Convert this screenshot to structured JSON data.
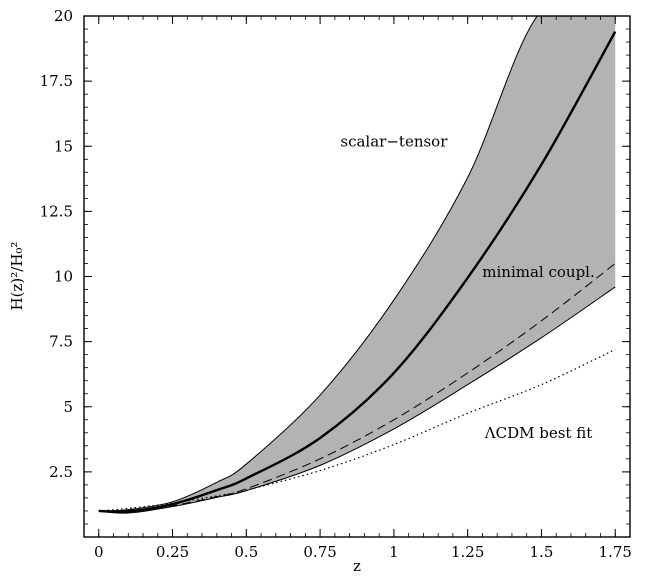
{
  "chart_data": {
    "type": "line",
    "title": "",
    "xlabel": "z",
    "ylabel": "H(z)²/H₀²",
    "xlim": [
      -0.05,
      1.8
    ],
    "ylim": [
      0,
      20
    ],
    "grid": false,
    "x_ticks": [
      0,
      0.25,
      0.5,
      0.75,
      1,
      1.25,
      1.5,
      1.75
    ],
    "x_tick_labels": [
      "0",
      "0.25",
      "0.5",
      "0.75",
      "1",
      "1.25",
      "1.5",
      "1.75"
    ],
    "y_ticks": [
      2.5,
      5,
      7.5,
      10,
      12.5,
      15,
      17.5,
      20
    ],
    "y_tick_labels": [
      "2.5",
      "5",
      "7.5",
      "10",
      "12.5",
      "15",
      "17.5",
      "20"
    ],
    "band": {
      "fill_color": "#b3b3b3",
      "x": [
        0,
        0.1,
        0.25,
        0.4,
        0.5,
        0.75,
        1.0,
        1.25,
        1.5,
        1.75
      ],
      "upper": [
        1.0,
        1.05,
        1.35,
        2.1,
        2.8,
        5.45,
        9.1,
        13.8,
        20.2,
        20.0
      ],
      "lower": [
        1.0,
        0.92,
        1.17,
        1.52,
        1.78,
        2.75,
        4.15,
        5.85,
        7.65,
        9.6
      ]
    },
    "series": [
      {
        "name": "scalar-tensor",
        "style": "solid-thick",
        "x": [
          0,
          0.1,
          0.25,
          0.4,
          0.5,
          0.75,
          1.0,
          1.25,
          1.5,
          1.75
        ],
        "y": [
          1.0,
          0.98,
          1.26,
          1.8,
          2.25,
          3.8,
          6.3,
          9.95,
          14.3,
          19.4
        ]
      },
      {
        "name": "minimal coupl.",
        "style": "dashed",
        "x": [
          0,
          0.1,
          0.25,
          0.4,
          0.5,
          0.75,
          1.0,
          1.25,
          1.5,
          1.75
        ],
        "y": [
          1.0,
          1.02,
          1.2,
          1.55,
          1.85,
          3.0,
          4.5,
          6.3,
          8.3,
          10.5
        ]
      },
      {
        "name": "ΛCDM best fit",
        "style": "dotted",
        "x": [
          0,
          0.1,
          0.25,
          0.4,
          0.5,
          0.75,
          1.0,
          1.25,
          1.5,
          1.75
        ],
        "y": [
          1.0,
          1.1,
          1.3,
          1.58,
          1.8,
          2.55,
          3.55,
          4.75,
          5.85,
          7.2
        ]
      }
    ],
    "annotations": [
      {
        "text": "scalar−tensor",
        "x": 1.0,
        "y": 15.0
      },
      {
        "text": "minimal coupl.",
        "x": 1.49,
        "y": 9.98
      },
      {
        "text": "ΛCDM best fit",
        "x": 1.49,
        "y": 3.8
      }
    ]
  }
}
